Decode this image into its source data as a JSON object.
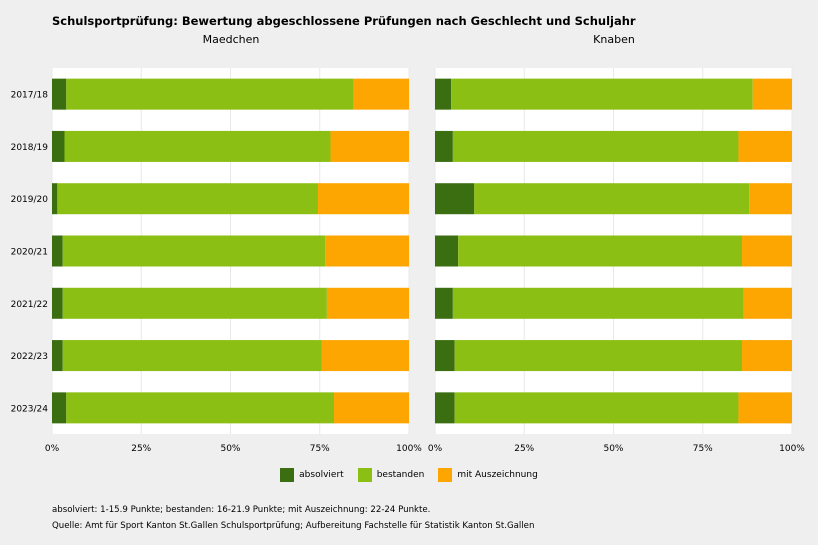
{
  "chart_data": {
    "type": "bar",
    "orientation": "horizontal",
    "stacked": "percent",
    "title": "Schulsportprüfung: Bewertung abgeschlossene Prüfungen nach Geschlecht und Schuljahr",
    "categories": [
      "2017/18",
      "2018/19",
      "2019/20",
      "2020/21",
      "2021/22",
      "2022/23",
      "2023/24"
    ],
    "xlim": [
      0,
      100
    ],
    "xticks": [
      "0%",
      "25%",
      "50%",
      "75%",
      "100%"
    ],
    "legend_position": "bottom",
    "panels": [
      {
        "name": "Maedchen",
        "series": [
          {
            "name": "absolviert",
            "values": [
              4,
              3.5,
              1.5,
              3,
              3,
              3,
              4
            ]
          },
          {
            "name": "bestanden",
            "values": [
              80.5,
              74.5,
              73,
              73.5,
              74,
              72.5,
              75
            ]
          },
          {
            "name": "mit Auszeichnung",
            "values": [
              15.5,
              22,
              25.5,
              23.5,
              23,
              24.5,
              21
            ]
          }
        ]
      },
      {
        "name": "Knaben",
        "series": [
          {
            "name": "absolviert",
            "values": [
              4.5,
              5,
              11,
              6.5,
              5,
              5.5,
              5.5
            ]
          },
          {
            "name": "bestanden",
            "values": [
              84.5,
              80,
              77,
              79.5,
              81.5,
              80.5,
              79.5
            ]
          },
          {
            "name": "mit Auszeichnung",
            "values": [
              11,
              15,
              12,
              14,
              13.5,
              14,
              15
            ]
          }
        ]
      }
    ],
    "colors": {
      "absolviert": "#3b6e10",
      "bestanden": "#8bbf13",
      "mit Auszeichnung": "#fda500"
    }
  },
  "footnotes": {
    "definition": "absolviert: 1-15.9 Punkte; bestanden: 16-21.9 Punkte; mit Auszeichnung: 22-24 Punkte.",
    "source": "Quelle: Amt für Sport Kanton St.Gallen Schulsportprüfung; Aufbereitung Fachstelle für Statistik Kanton St.Gallen"
  }
}
